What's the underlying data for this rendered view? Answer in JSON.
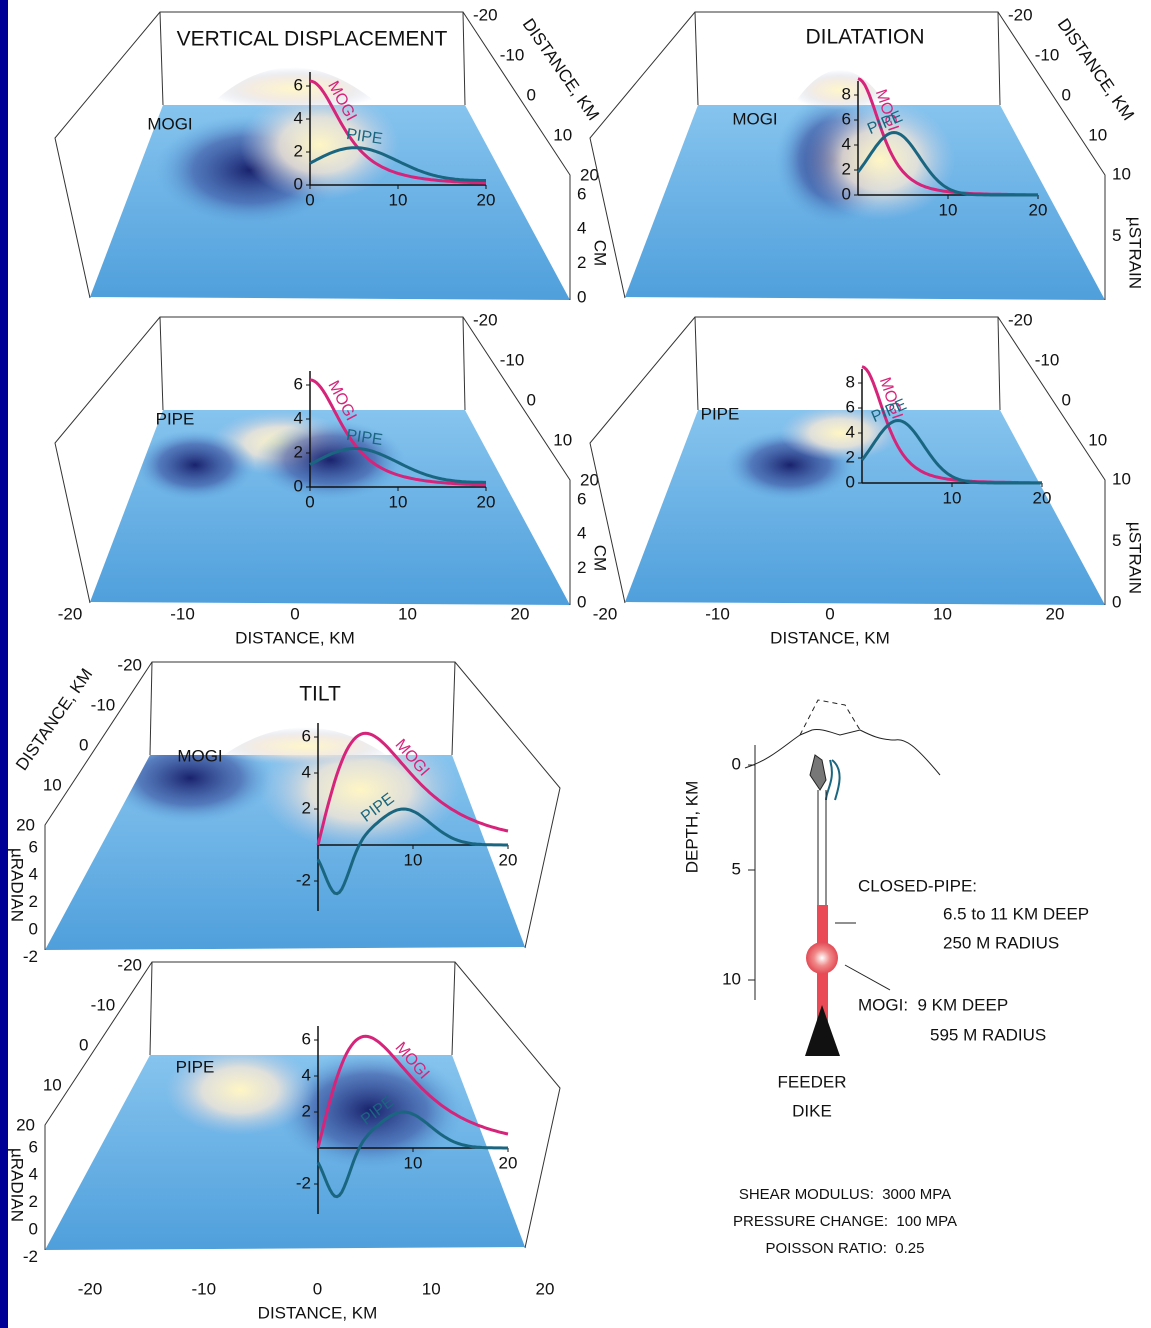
{
  "panels": [
    {
      "title": "VERTICAL DISPLACEMENT",
      "model": "MOGI",
      "inset": {
        "yticks": [
          "0",
          "2",
          "4",
          "6"
        ],
        "xticks": [
          "0",
          "10",
          "20"
        ],
        "curves": [
          "MOGI",
          "PIPE"
        ]
      },
      "depth": {
        "ticks": [
          "-20",
          "-10",
          "0",
          "10",
          "20"
        ],
        "label": "DISTANCE, KM"
      },
      "vertical": {
        "ticks": [
          "0",
          "2",
          "4",
          "6"
        ],
        "label": "CM"
      }
    },
    {
      "model": "PIPE",
      "inset": {
        "yticks": [
          "0",
          "2",
          "4",
          "6"
        ],
        "xticks": [
          "0",
          "10",
          "20"
        ],
        "curves": [
          "MOGI",
          "PIPE"
        ]
      },
      "depth": {
        "ticks": [
          "-20",
          "-10",
          "0",
          "10",
          "20"
        ]
      },
      "vertical": {
        "ticks": [
          "0",
          "2",
          "4",
          "6"
        ],
        "label": "CM"
      },
      "base": {
        "ticks": [
          "-20",
          "-10",
          "0",
          "10",
          "20"
        ],
        "label": "DISTANCE, KM"
      }
    },
    {
      "title": "DILATATION",
      "model": "MOGI",
      "inset": {
        "yticks": [
          "0",
          "2",
          "4",
          "6",
          "8"
        ],
        "xticks": [
          "10",
          "20"
        ],
        "curves": [
          "MOGI",
          "PIPE"
        ]
      },
      "depth": {
        "ticks": [
          "-20",
          "-10",
          "0",
          "10"
        ],
        "label": "DISTANCE, KM"
      },
      "vertical": {
        "ticks": [
          "5",
          "10"
        ],
        "label": "µSTRAIN"
      }
    },
    {
      "model": "PIPE",
      "inset": {
        "yticks": [
          "0",
          "2",
          "4",
          "6",
          "8"
        ],
        "xticks": [
          "10",
          "20"
        ],
        "curves": [
          "MOGI",
          "PIPE"
        ]
      },
      "depth": {
        "ticks": [
          "-20",
          "-10",
          "0",
          "10"
        ]
      },
      "vertical": {
        "ticks": [
          "0",
          "5",
          "10"
        ],
        "label": "µSTRAIN"
      },
      "base": {
        "ticks": [
          "-20",
          "-10",
          "0",
          "10",
          "20"
        ],
        "label": "DISTANCE, KM"
      }
    },
    {
      "title": "TILT",
      "model": "MOGI",
      "inset": {
        "yticks": [
          "-2",
          "2",
          "4",
          "6"
        ],
        "xticks": [
          "10",
          "20"
        ],
        "curves": [
          "MOGI",
          "PIPE"
        ]
      },
      "depth": {
        "ticks": [
          "-20",
          "-10",
          "0",
          "10",
          "20"
        ],
        "label": "DISTANCE, KM"
      },
      "vertical": {
        "ticks": [
          "-2",
          "0",
          "2",
          "4",
          "6"
        ],
        "label": "µRADIAN"
      }
    },
    {
      "model": "PIPE",
      "inset": {
        "yticks": [
          "-2",
          "2",
          "4",
          "6"
        ],
        "xticks": [
          "10",
          "20"
        ],
        "curves": [
          "MOGI",
          "PIPE"
        ]
      },
      "depth": {
        "ticks": [
          "-20",
          "-10",
          "0",
          "10",
          "20"
        ]
      },
      "vertical": {
        "ticks": [
          "-2",
          "0",
          "2",
          "4",
          "6"
        ],
        "label": "µRADIAN"
      },
      "base": {
        "ticks": [
          "-20",
          "-10",
          "0",
          "10",
          "20"
        ],
        "label": "DISTANCE, KM"
      }
    }
  ],
  "schematic": {
    "axis_label": "DEPTH, KM",
    "ticks": [
      "0",
      "5",
      "10"
    ],
    "pipe_label": "CLOSED-PIPE:",
    "pipe_depth": "6.5 to 11 KM DEEP",
    "pipe_radius": "250 M RADIUS",
    "mogi_label": "MOGI:  9 KM DEEP",
    "mogi_radius": "595 M RADIUS",
    "dike_label": [
      "FEEDER",
      "DIKE"
    ]
  },
  "parameters": [
    "SHEAR MODULUS:  3000 MPA",
    "PRESSURE CHANGE:  100 MPA",
    "POISSON RATIO:  0.25"
  ]
}
